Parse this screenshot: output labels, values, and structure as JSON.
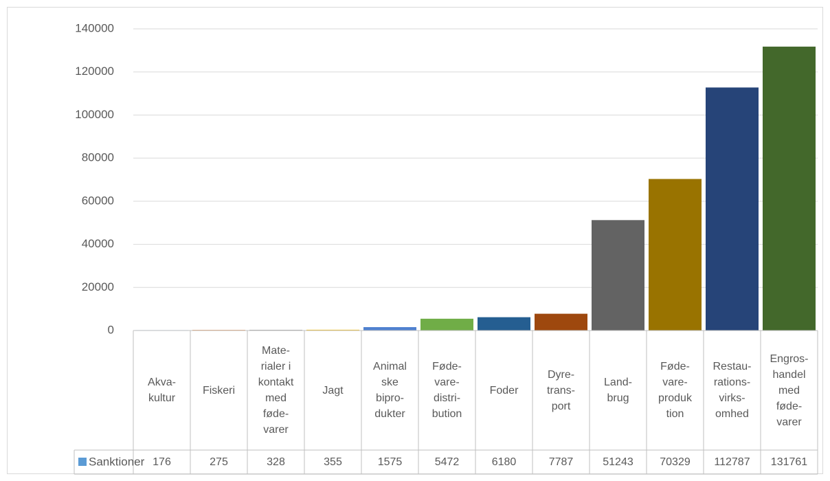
{
  "chart_data": {
    "type": "bar",
    "categories": [
      "Akva-\nkultur",
      "Fiskeri",
      "Mate-\nrialer i\nkontakt\nmed\nføde-\nvarer",
      "Jagt",
      "Animal\nske\nbipro-\ndukter",
      "Føde-\nvare-\ndistri-\nbution",
      "Foder",
      "Dyre-\ntrans-\nport",
      "Land-\nbrug",
      "Føde-\nvare-\nproduk\ntion",
      "Restau-\nrations-\nvirks-\nomhed",
      "Engros-\nhandel\nmed\nføde-\nvarer"
    ],
    "series": [
      {
        "name": "Sanktioner",
        "color": "#5b9bd5",
        "values": [
          176,
          275,
          328,
          355,
          1575,
          5472,
          6180,
          7787,
          51243,
          70329,
          112787,
          131761
        ],
        "colors": [
          "#5b9bd5",
          "#ed7d31",
          "#a5a5a5",
          "#ffc000",
          "#4f81d0",
          "#70ad47",
          "#255e91",
          "#9e480e",
          "#636363",
          "#997300",
          "#264478",
          "#43682b"
        ]
      }
    ],
    "ylim": [
      0,
      140000
    ],
    "yticks": [
      0,
      20000,
      40000,
      60000,
      80000,
      100000,
      120000,
      140000
    ],
    "grid": true,
    "data_table": true
  }
}
